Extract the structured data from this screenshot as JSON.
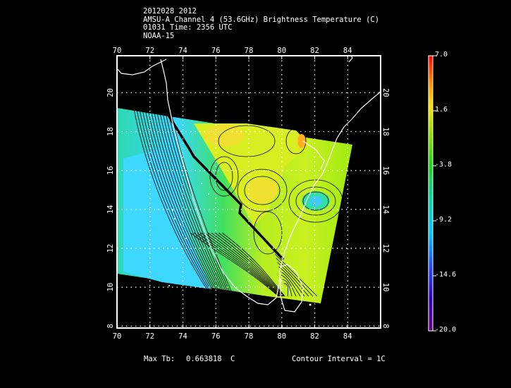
{
  "header": {
    "line1": "2012028 2012",
    "line2": "AMSU-A Channel 4 (53.6GHz) Brightness Temperature (C)",
    "line3": "01031 Time: 2356 UTC",
    "line4": "NOAA-15"
  },
  "map": {
    "lon_ticks": [
      "70",
      "72",
      "74",
      "76",
      "78",
      "80",
      "82",
      "84"
    ],
    "lat_ticks": [
      "8",
      "10",
      "12",
      "14",
      "16",
      "18",
      "20"
    ],
    "lon_range": [
      70,
      86
    ],
    "lat_range": [
      7.9,
      21.9
    ]
  },
  "colorbar": {
    "labels": [
      "7.0",
      "1.6",
      "-3.8",
      "-9.2",
      "-14.6",
      "-20.0"
    ],
    "range": [
      -20.0,
      7.0
    ],
    "colors": [
      "#5a0060",
      "#2030ff",
      "#00c8ff",
      "#00d890",
      "#40e000",
      "#ffe000",
      "#ff8000",
      "#ff0000"
    ]
  },
  "footer": {
    "max_label": "Max Tb:",
    "max_value": "0.663818",
    "max_unit": "C",
    "contour": "Contour Interval = 1C"
  }
}
